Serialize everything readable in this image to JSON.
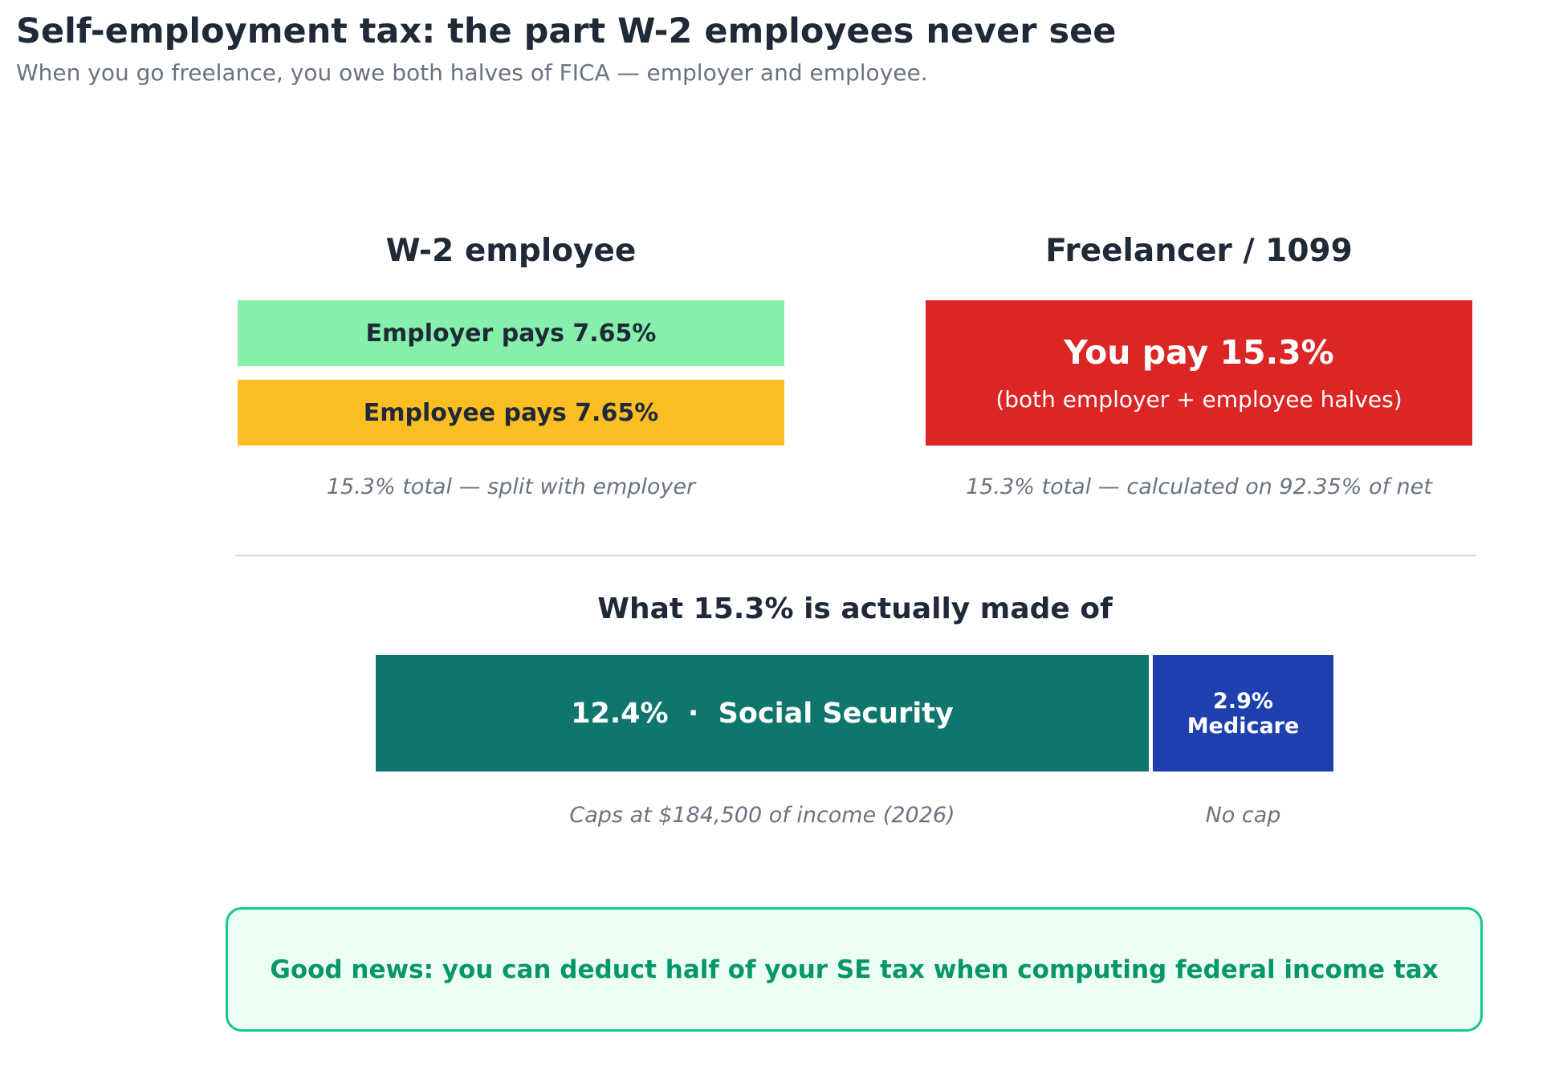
{
  "header": {
    "title": "Self-employment tax: the part W-2 employees never see",
    "subtitle": "When you go freelance, you owe both halves of FICA — employer and employee."
  },
  "w2": {
    "heading": "W-2 employee",
    "employer_label": "Employer pays 7.65%",
    "employee_label": "Employee pays 7.65%",
    "note": "15.3% total — split with employer"
  },
  "freelancer": {
    "heading": "Freelancer / 1099",
    "main_label": "You pay 15.3%",
    "sub_label": "(both employer + employee halves)",
    "note": "15.3% total — calculated on 92.35% of net"
  },
  "breakdown": {
    "heading": "What 15.3% is actually made of",
    "social_security_label": "12.4%  ·  Social Security",
    "social_security_pct": 12.4,
    "medicare_pct_label": "2.9%",
    "medicare_name": "Medicare",
    "medicare_pct": 2.9,
    "social_security_note": "Caps at $184,500 of income (2026)",
    "medicare_note": "No cap"
  },
  "callout": {
    "text": "Good news: you can deduct half of your SE tax when computing federal income tax"
  },
  "colors": {
    "employer_green": "#86efac",
    "employee_yellow": "#fbbf24",
    "freelancer_red": "#dc2626",
    "social_security_teal": "#0f766e",
    "medicare_blue": "#1e40af",
    "callout_green": "#059669"
  }
}
